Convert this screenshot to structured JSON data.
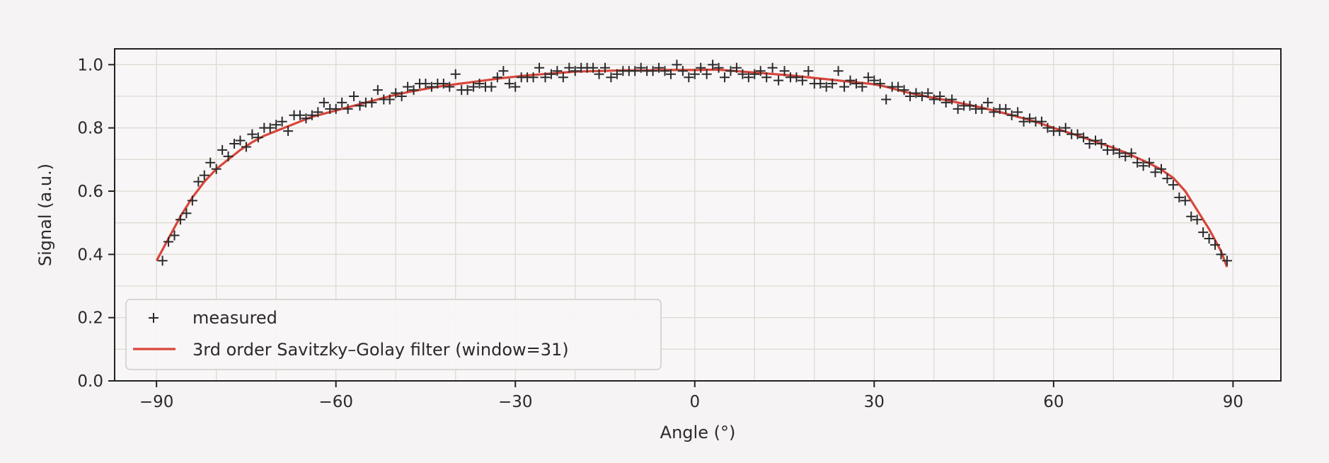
{
  "chart_data": {
    "type": "scatter",
    "title": "",
    "xlabel": "Angle (°)",
    "ylabel": "Signal (a.u.)",
    "xlim": [
      -97,
      98
    ],
    "ylim": [
      0.0,
      1.05
    ],
    "x_ticks": [
      -90,
      -60,
      -30,
      0,
      30,
      60,
      90
    ],
    "x_tick_labels": [
      "−90",
      "−60",
      "−30",
      "0",
      "30",
      "60",
      "90"
    ],
    "y_ticks": [
      0.0,
      0.2,
      0.4,
      0.6,
      0.8,
      1.0
    ],
    "y_tick_labels": [
      "0.0",
      "0.2",
      "0.4",
      "0.6",
      "0.8",
      "1.0"
    ],
    "grid": true,
    "minor_grid_x_step": 10,
    "legend_position": "lower-left",
    "colors": {
      "measured": "#2b2b2b",
      "fit": "#d9463a",
      "grid": "#dedbd2",
      "axes_bg": "#f8f6f7",
      "frame": "#222222"
    },
    "series": [
      {
        "name": "measured",
        "style": "markers",
        "marker": "plus",
        "x": [
          -89,
          -88,
          -87,
          -86,
          -85,
          -84,
          -83,
          -82,
          -81,
          -80,
          -79,
          -78,
          -77,
          -76,
          -75,
          -74,
          -73,
          -72,
          -71,
          -70,
          -69,
          -68,
          -67,
          -66,
          -65,
          -64,
          -63,
          -62,
          -61,
          -60,
          -59,
          -58,
          -57,
          -56,
          -55,
          -54,
          -53,
          -52,
          -51,
          -50,
          -49,
          -48,
          -47,
          -46,
          -45,
          -44,
          -43,
          -42,
          -41,
          -40,
          -39,
          -38,
          -37,
          -36,
          -35,
          -34,
          -33,
          -32,
          -31,
          -30,
          -29,
          -28,
          -27,
          -26,
          -25,
          -24,
          -23,
          -22,
          -21,
          -20,
          -19,
          -18,
          -17,
          -16,
          -15,
          -14,
          -13,
          -12,
          -11,
          -10,
          -9,
          -8,
          -7,
          -6,
          -5,
          -4,
          -3,
          -2,
          -1,
          0,
          1,
          2,
          3,
          4,
          5,
          6,
          7,
          8,
          9,
          10,
          11,
          12,
          13,
          14,
          15,
          16,
          17,
          18,
          19,
          20,
          21,
          22,
          23,
          24,
          25,
          26,
          27,
          28,
          29,
          30,
          31,
          32,
          33,
          34,
          35,
          36,
          37,
          38,
          39,
          40,
          41,
          42,
          43,
          44,
          45,
          46,
          47,
          48,
          49,
          50,
          51,
          52,
          53,
          54,
          55,
          56,
          57,
          58,
          59,
          60,
          61,
          62,
          63,
          64,
          65,
          66,
          67,
          68,
          69,
          70,
          71,
          72,
          73,
          74,
          75,
          76,
          77,
          78,
          79,
          80,
          81,
          82,
          83,
          84,
          85,
          86,
          87,
          88,
          89
        ],
        "y": [
          0.38,
          0.44,
          0.46,
          0.51,
          0.53,
          0.57,
          0.63,
          0.65,
          0.69,
          0.67,
          0.73,
          0.71,
          0.75,
          0.76,
          0.74,
          0.78,
          0.77,
          0.8,
          0.8,
          0.81,
          0.82,
          0.79,
          0.84,
          0.84,
          0.83,
          0.84,
          0.85,
          0.88,
          0.86,
          0.86,
          0.88,
          0.86,
          0.9,
          0.87,
          0.88,
          0.88,
          0.92,
          0.89,
          0.89,
          0.91,
          0.9,
          0.93,
          0.92,
          0.94,
          0.94,
          0.93,
          0.94,
          0.94,
          0.93,
          0.97,
          0.92,
          0.92,
          0.93,
          0.94,
          0.93,
          0.93,
          0.96,
          0.98,
          0.94,
          0.93,
          0.96,
          0.96,
          0.96,
          0.99,
          0.96,
          0.97,
          0.98,
          0.96,
          0.99,
          0.98,
          0.99,
          0.99,
          0.99,
          0.97,
          0.99,
          0.96,
          0.97,
          0.98,
          0.98,
          0.98,
          0.99,
          0.98,
          0.98,
          0.99,
          0.98,
          0.97,
          1.0,
          0.98,
          0.96,
          0.97,
          0.99,
          0.97,
          1.0,
          0.99,
          0.96,
          0.98,
          0.99,
          0.97,
          0.96,
          0.97,
          0.98,
          0.96,
          0.99,
          0.95,
          0.98,
          0.96,
          0.96,
          0.95,
          0.98,
          0.94,
          0.94,
          0.93,
          0.94,
          0.98,
          0.93,
          0.95,
          0.94,
          0.93,
          0.96,
          0.95,
          0.94,
          0.89,
          0.93,
          0.93,
          0.92,
          0.9,
          0.91,
          0.9,
          0.91,
          0.89,
          0.9,
          0.88,
          0.89,
          0.86,
          0.87,
          0.87,
          0.86,
          0.86,
          0.88,
          0.85,
          0.86,
          0.86,
          0.84,
          0.85,
          0.82,
          0.83,
          0.82,
          0.82,
          0.8,
          0.79,
          0.79,
          0.8,
          0.78,
          0.78,
          0.77,
          0.75,
          0.76,
          0.75,
          0.73,
          0.73,
          0.72,
          0.71,
          0.72,
          0.69,
          0.68,
          0.69,
          0.66,
          0.67,
          0.64,
          0.62,
          0.58,
          0.57,
          0.52,
          0.51,
          0.47,
          0.45,
          0.43,
          0.4,
          0.38
        ]
      },
      {
        "name": "3rd order Savitzky–Golay filter (window=31)",
        "style": "line",
        "x": [
          -90,
          -88,
          -86,
          -84,
          -82,
          -80,
          -78,
          -76,
          -74,
          -72,
          -70,
          -68,
          -66,
          -64,
          -62,
          -60,
          -58,
          -56,
          -54,
          -52,
          -50,
          -48,
          -46,
          -44,
          -42,
          -40,
          -38,
          -36,
          -34,
          -32,
          -30,
          -28,
          -26,
          -24,
          -22,
          -20,
          -18,
          -16,
          -14,
          -12,
          -10,
          -8,
          -6,
          -4,
          -2,
          0,
          2,
          4,
          6,
          8,
          10,
          12,
          14,
          16,
          18,
          20,
          22,
          24,
          26,
          28,
          30,
          32,
          34,
          36,
          38,
          40,
          42,
          44,
          46,
          48,
          50,
          52,
          54,
          56,
          58,
          60,
          62,
          64,
          66,
          68,
          70,
          72,
          74,
          76,
          78,
          80,
          82,
          84,
          86,
          88,
          89
        ],
        "y": [
          0.38,
          0.45,
          0.52,
          0.58,
          0.63,
          0.67,
          0.7,
          0.73,
          0.755,
          0.775,
          0.79,
          0.805,
          0.82,
          0.835,
          0.845,
          0.855,
          0.865,
          0.875,
          0.885,
          0.895,
          0.905,
          0.913,
          0.92,
          0.927,
          0.933,
          0.938,
          0.943,
          0.948,
          0.953,
          0.958,
          0.962,
          0.966,
          0.969,
          0.972,
          0.975,
          0.978,
          0.979,
          0.98,
          0.981,
          0.982,
          0.982,
          0.982,
          0.983,
          0.983,
          0.983,
          0.983,
          0.984,
          0.984,
          0.981,
          0.978,
          0.975,
          0.972,
          0.969,
          0.966,
          0.962,
          0.958,
          0.954,
          0.95,
          0.946,
          0.942,
          0.938,
          0.93,
          0.92,
          0.91,
          0.902,
          0.895,
          0.888,
          0.88,
          0.872,
          0.864,
          0.855,
          0.845,
          0.835,
          0.825,
          0.813,
          0.8,
          0.788,
          0.776,
          0.763,
          0.75,
          0.737,
          0.722,
          0.705,
          0.688,
          0.668,
          0.642,
          0.6,
          0.54,
          0.48,
          0.41,
          0.36
        ]
      }
    ]
  }
}
